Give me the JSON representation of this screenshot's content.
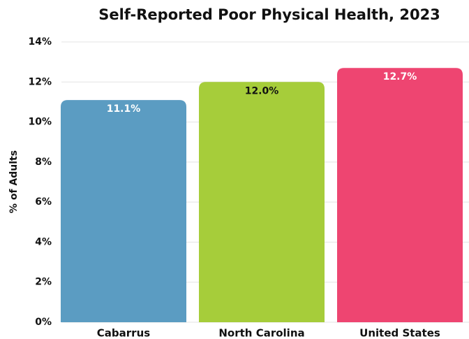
{
  "chart_data": {
    "type": "bar",
    "title": "Self-Reported Poor Physical Health, 2023",
    "y_label": "% of Adults",
    "categories": [
      "Cabarrus",
      "North Carolina",
      "United States"
    ],
    "values": [
      11.1,
      12.0,
      12.7
    ],
    "value_labels": [
      "11.1%",
      "12.0%",
      "12.7%"
    ],
    "colors": [
      "#5b9cc2",
      "#a6cd3a",
      "#ee4571"
    ],
    "ylim": [
      0,
      14
    ],
    "yticks": [
      {
        "value": 0,
        "label": "0%"
      },
      {
        "value": 2,
        "label": "2%"
      },
      {
        "value": 4,
        "label": "4%"
      },
      {
        "value": 6,
        "label": "6%"
      },
      {
        "value": 8,
        "label": "8%"
      },
      {
        "value": 10,
        "label": "10%"
      },
      {
        "value": 12,
        "label": "12%"
      },
      {
        "value": 14,
        "label": "14%"
      }
    ],
    "grid": true
  }
}
